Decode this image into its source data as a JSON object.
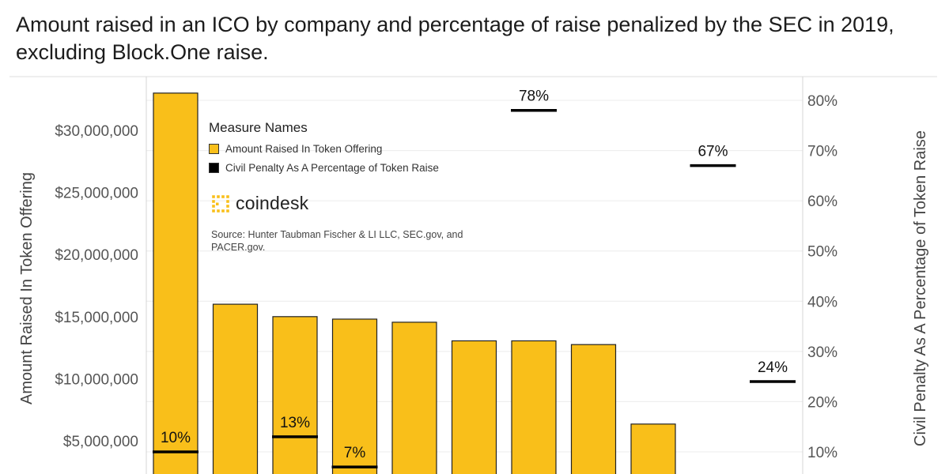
{
  "title": "Amount raised in an ICO by company and percentage of raise penalized by the SEC in 2019, excluding Block.One raise.",
  "legend": {
    "title": "Measure Names",
    "items": [
      {
        "label": "Amount Raised In Token Offering",
        "color": "#F9BF1A"
      },
      {
        "label": "Civil Penalty As A Percentage of Token Raise",
        "color": "#000000"
      }
    ]
  },
  "brand": {
    "name": "coindesk",
    "color": "#F9BF1A"
  },
  "source": "Source: Hunter Taubman Fischer & LI LLC, SEC.gov, and PACER.gov.",
  "chart_data": {
    "type": "bar",
    "categories": [
      "",
      "",
      "",
      "",
      "",
      "",
      "",
      "",
      "",
      "",
      ""
    ],
    "series": [
      {
        "name": "Amount Raised In Token Offering",
        "axis": "left",
        "values": [
          33000000,
          16000000,
          15000000,
          14800000,
          14550000,
          13050000,
          13050000,
          12750000,
          6350000,
          null,
          null
        ],
        "color": "#F9BF1A"
      },
      {
        "name": "Civil Penalty As A Percentage of Token Raise",
        "axis": "right",
        "mark": "tick",
        "values": [
          0.1,
          null,
          0.13,
          0.07,
          null,
          null,
          0.78,
          null,
          null,
          0.67,
          0.24
        ],
        "value_labels": [
          "10%",
          "",
          "13%",
          "7%",
          "",
          "",
          "78%",
          "",
          "",
          "67%",
          "24%"
        ],
        "color": "#000000"
      }
    ],
    "ylabel": "Amount Raised In Token Offering",
    "y2label": "Civil Penalty As A Percentage of Token Raise",
    "yticks": [
      {
        "value": 5000000,
        "label": "$5,000,000"
      },
      {
        "value": 10000000,
        "label": "$10,000,000"
      },
      {
        "value": 15000000,
        "label": "$15,000,000"
      },
      {
        "value": 20000000,
        "label": "$20,000,000"
      },
      {
        "value": 25000000,
        "label": "$25,000,000"
      },
      {
        "value": 30000000,
        "label": "$30,000,000"
      }
    ],
    "y2ticks": [
      {
        "value": 0.1,
        "label": "10%"
      },
      {
        "value": 0.2,
        "label": "20%"
      },
      {
        "value": 0.3,
        "label": "30%"
      },
      {
        "value": 0.4,
        "label": "40%"
      },
      {
        "value": 0.5,
        "label": "50%"
      },
      {
        "value": 0.6,
        "label": "60%"
      },
      {
        "value": 0.7,
        "label": "70%"
      },
      {
        "value": 0.8,
        "label": "80%"
      }
    ],
    "grid": true,
    "legend_position": "top-left"
  }
}
